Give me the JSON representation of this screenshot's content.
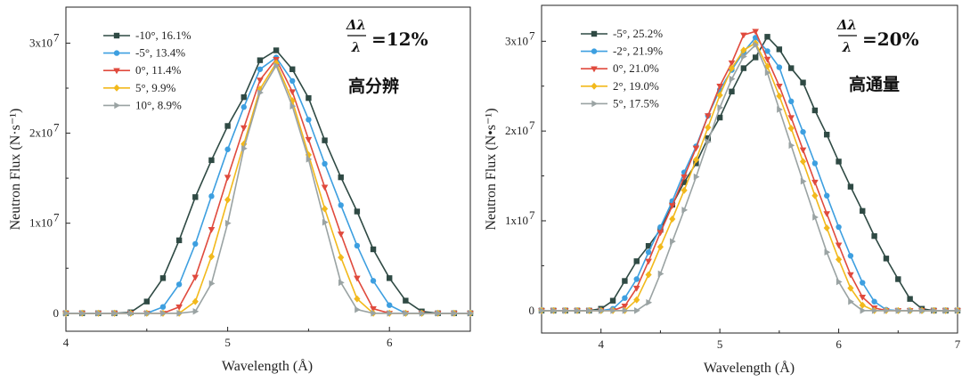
{
  "chart_data": [
    {
      "type": "line",
      "xlabel": "Wavelength (Å)",
      "ylabel": "Neutron Flux (N·s⁻¹)",
      "xlim": [
        4,
        6.5
      ],
      "ylim": [
        -2000000,
        34000000
      ],
      "x_ticks": [
        "4",
        "5",
        "6"
      ],
      "y_ticks": [
        "0",
        "1x10",
        "2x10",
        "3x10"
      ],
      "y_tick_exp": "7",
      "resolution_label": "=12%",
      "fraction_num": "Δλ",
      "fraction_den": "λ",
      "mode_label": "高分辨",
      "legend_position": "top-left",
      "x": [
        4.0,
        4.1,
        4.2,
        4.3,
        4.4,
        4.5,
        4.6,
        4.7,
        4.8,
        4.9,
        5.0,
        5.1,
        5.2,
        5.3,
        5.4,
        5.5,
        5.6,
        5.7,
        5.8,
        5.9,
        6.0,
        6.1,
        6.2,
        6.3,
        6.4,
        6.5
      ],
      "series": [
        {
          "name": "-10°,  16.1%",
          "color": "#2f4a44",
          "marker": "square",
          "values": [
            0,
            0,
            0,
            0,
            100000,
            1300000,
            3900000,
            8100000,
            12900000,
            17000000,
            20800000,
            24000000,
            28100000,
            29200000,
            27100000,
            23900000,
            19200000,
            15100000,
            11300000,
            7100000,
            3900000,
            1400000,
            200000,
            0,
            0,
            0
          ]
        },
        {
          "name": "-5°,  13.4%",
          "color": "#3d9fe0",
          "marker": "circle",
          "values": [
            0,
            0,
            0,
            0,
            0,
            0,
            700000,
            3200000,
            7700000,
            13000000,
            18200000,
            22900000,
            27100000,
            28400000,
            25800000,
            21500000,
            16600000,
            12000000,
            7500000,
            3600000,
            900000,
            0,
            0,
            0,
            0,
            0
          ]
        },
        {
          "name": "0°,  11.4%",
          "color": "#e04a3d",
          "marker": "tri-down",
          "values": [
            0,
            0,
            0,
            0,
            0,
            0,
            0,
            700000,
            4000000,
            9300000,
            15100000,
            20600000,
            25900000,
            28200000,
            24600000,
            19300000,
            14000000,
            8800000,
            3900000,
            500000,
            0,
            0,
            0,
            0,
            0,
            0
          ]
        },
        {
          "name": "5°,  9.9%",
          "color": "#f2b91c",
          "marker": "diamond",
          "values": [
            0,
            0,
            0,
            0,
            0,
            0,
            0,
            0,
            1300000,
            6300000,
            12600000,
            18800000,
            24900000,
            27800000,
            23600000,
            17600000,
            11600000,
            6200000,
            1600000,
            0,
            0,
            0,
            0,
            0,
            0,
            0
          ]
        },
        {
          "name": "10°,  8.9%",
          "color": "#9aa3a3",
          "marker": "tri-right",
          "values": [
            0,
            0,
            0,
            0,
            0,
            0,
            0,
            0,
            200000,
            3300000,
            10000000,
            18300000,
            24500000,
            27500000,
            23000000,
            17100000,
            10100000,
            3400000,
            400000,
            0,
            0,
            0,
            0,
            0,
            0,
            0
          ]
        }
      ]
    },
    {
      "type": "line",
      "xlabel": "Wavelength (Å)",
      "ylabel": "Neutron Flux (N•s⁻¹)",
      "xlim": [
        3.5,
        7
      ],
      "ylim": [
        -2500000,
        34000000
      ],
      "x_ticks": [
        "4",
        "5",
        "6",
        "7"
      ],
      "y_ticks": [
        "0",
        "1x10",
        "2x10",
        "3x10"
      ],
      "y_tick_exp": "7",
      "resolution_label": "=20%",
      "fraction_num": "Δλ",
      "fraction_den": "λ",
      "mode_label": "高通量",
      "legend_position": "top-left",
      "x": [
        3.5,
        3.6,
        3.7,
        3.8,
        3.9,
        4.0,
        4.1,
        4.2,
        4.3,
        4.4,
        4.5,
        4.6,
        4.7,
        4.8,
        4.9,
        5.0,
        5.1,
        5.2,
        5.3,
        5.4,
        5.5,
        5.6,
        5.7,
        5.8,
        5.9,
        6.0,
        6.1,
        6.2,
        6.3,
        6.4,
        6.5,
        6.6,
        6.7,
        6.8,
        6.9,
        7.0
      ],
      "series": [
        {
          "name": "-5°,  25.2%",
          "color": "#2f4a44",
          "marker": "square",
          "values": [
            0,
            0,
            0,
            0,
            0,
            200000,
            1100000,
            3300000,
            5500000,
            7200000,
            9000000,
            11800000,
            14300000,
            16400000,
            19200000,
            21500000,
            24400000,
            27000000,
            28200000,
            30500000,
            29100000,
            27000000,
            25400000,
            22300000,
            19600000,
            16600000,
            13800000,
            11100000,
            8300000,
            5800000,
            3500000,
            1300000,
            200000,
            0,
            0,
            0
          ]
        },
        {
          "name": "-2°,  21.9%",
          "color": "#3d9fe0",
          "marker": "circle",
          "values": [
            0,
            0,
            0,
            0,
            0,
            0,
            200000,
            1400000,
            3500000,
            6500000,
            9300000,
            12200000,
            15400000,
            18300000,
            21700000,
            24600000,
            26800000,
            28800000,
            30400000,
            28900000,
            27100000,
            23300000,
            19900000,
            16400000,
            12800000,
            9300000,
            6100000,
            3100000,
            1000000,
            100000,
            0,
            0,
            0,
            0,
            0,
            0
          ]
        },
        {
          "name": "0°,  21.0%",
          "color": "#e04a3d",
          "marker": "tri-down",
          "values": [
            0,
            0,
            0,
            0,
            0,
            0,
            0,
            500000,
            2500000,
            5500000,
            8700000,
            11700000,
            14900000,
            18100000,
            21700000,
            25000000,
            27600000,
            30700000,
            31100000,
            28000000,
            25000000,
            21500000,
            17900000,
            14300000,
            10800000,
            7300000,
            4000000,
            1500000,
            300000,
            0,
            0,
            0,
            0,
            0,
            0,
            0
          ]
        },
        {
          "name": "2°,  19.0%",
          "color": "#f2b91c",
          "marker": "diamond",
          "values": [
            0,
            0,
            0,
            0,
            0,
            0,
            0,
            0,
            1200000,
            4000000,
            7100000,
            10200000,
            13400000,
            16800000,
            20400000,
            24000000,
            27000000,
            29000000,
            29800000,
            27200000,
            23900000,
            20300000,
            16600000,
            12800000,
            9200000,
            5700000,
            2500000,
            600000,
            0,
            0,
            0,
            0,
            0,
            0,
            0,
            0
          ]
        },
        {
          "name": "5°,  17.5%",
          "color": "#9aa3a3",
          "marker": "tri-right",
          "values": [
            0,
            0,
            0,
            0,
            0,
            0,
            0,
            0,
            0,
            900000,
            4100000,
            7700000,
            11200000,
            14900000,
            18800000,
            22600000,
            25800000,
            28300000,
            29600000,
            26500000,
            22400000,
            18400000,
            14400000,
            10400000,
            6500000,
            3200000,
            1000000,
            0,
            0,
            0,
            0,
            0,
            0,
            0,
            0,
            0
          ]
        }
      ]
    }
  ]
}
